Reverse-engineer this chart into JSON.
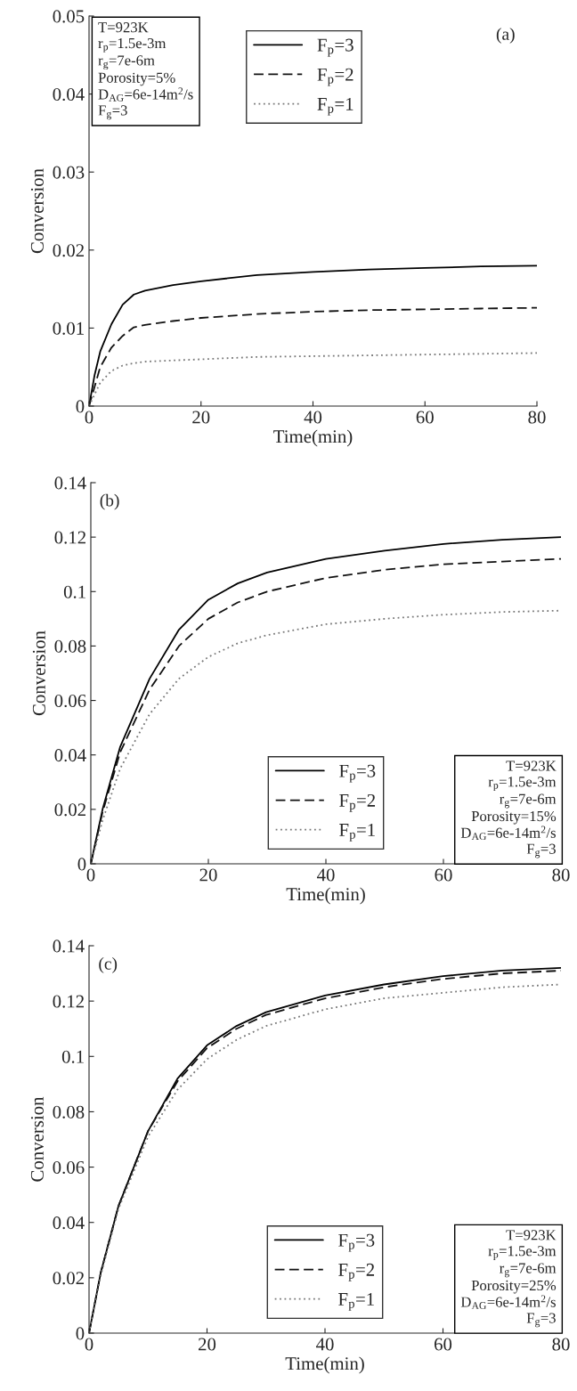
{
  "chart_data": [
    {
      "type": "line",
      "xlabel": "Time(min)",
      "ylabel": "Conversion",
      "xlim": [
        0,
        80
      ],
      "xticks": [
        0,
        20,
        40,
        60,
        80
      ],
      "ylim": [
        0,
        0.05
      ],
      "yticks": [
        0,
        0.01,
        0.02,
        0.03,
        0.04,
        0.05
      ],
      "grid": false,
      "legend": "top",
      "annotations": [
        "(a)",
        "T=923K\nr$_{p}$=1.5e-3m\nr$_{g}$=7e-6m\nPorosity=5%\nD$_{AG}$=6e-14m$^{2}$/s\nF$_{g}$=3"
      ],
      "series": [
        {
          "name": "F$_{p}$=3",
          "color": "#000000",
          "line_style": "solid",
          "x": [
            0,
            1,
            2,
            4,
            6,
            8,
            10,
            15,
            20,
            30,
            40,
            50,
            60,
            70,
            80
          ],
          "values": [
            0,
            0.004,
            0.007,
            0.0105,
            0.013,
            0.0143,
            0.0148,
            0.0155,
            0.016,
            0.0168,
            0.0172,
            0.0175,
            0.0177,
            0.0179,
            0.018
          ]
        },
        {
          "name": "F$_{p}$=2",
          "color": "#111111",
          "line_style": "dashed",
          "x": [
            0,
            2,
            4,
            6,
            8,
            10,
            15,
            20,
            30,
            40,
            50,
            60,
            70,
            80
          ],
          "values": [
            0,
            0.005,
            0.0075,
            0.009,
            0.0101,
            0.0104,
            0.0109,
            0.0113,
            0.0118,
            0.0121,
            0.0123,
            0.0124,
            0.0125,
            0.0126
          ]
        },
        {
          "name": "F$_{p}$=1",
          "color": "#777777",
          "line_style": "dotted",
          "x": [
            0,
            2,
            4,
            6,
            8,
            10,
            20,
            30,
            40,
            60,
            80
          ],
          "values": [
            0,
            0.003,
            0.0045,
            0.0052,
            0.0055,
            0.0057,
            0.006,
            0.0063,
            0.0064,
            0.0066,
            0.0068
          ]
        }
      ]
    },
    {
      "type": "line",
      "xlabel": "Time(min)",
      "ylabel": "Conversion",
      "xlim": [
        0,
        80
      ],
      "xticks": [
        0,
        20,
        40,
        60,
        80
      ],
      "ylim": [
        0,
        0.14
      ],
      "yticks": [
        0,
        0.02,
        0.04,
        0.06,
        0.08,
        0.1,
        0.12,
        0.14
      ],
      "grid": false,
      "legend": "bottom",
      "annotations": [
        "(b)",
        "T=923K\nr$_{p}$=1.5e-3m\nr$_{g}$=7e-6m\nPorosity=15%\nD$_{AG}$=6e-14m$^{2}$/s\nF$_{g}$=3"
      ],
      "series": [
        {
          "name": "F$_{p}$=3",
          "color": "#000000",
          "line_style": "solid",
          "x": [
            0,
            2,
            5,
            10,
            15,
            20,
            25,
            30,
            40,
            50,
            60,
            70,
            80
          ],
          "values": [
            0,
            0.02,
            0.043,
            0.068,
            0.086,
            0.097,
            0.103,
            0.107,
            0.112,
            0.115,
            0.1175,
            0.119,
            0.12
          ]
        },
        {
          "name": "F$_{p}$=2",
          "color": "#111111",
          "line_style": "dashed",
          "x": [
            0,
            2,
            5,
            10,
            15,
            20,
            25,
            30,
            40,
            50,
            60,
            70,
            80
          ],
          "values": [
            0,
            0.019,
            0.041,
            0.064,
            0.08,
            0.09,
            0.096,
            0.1,
            0.105,
            0.108,
            0.11,
            0.111,
            0.112
          ]
        },
        {
          "name": "F$_{p}$=1",
          "color": "#777777",
          "line_style": "dotted",
          "x": [
            0,
            2,
            5,
            10,
            15,
            20,
            25,
            30,
            40,
            50,
            60,
            70,
            80
          ],
          "values": [
            0,
            0.016,
            0.035,
            0.055,
            0.068,
            0.076,
            0.081,
            0.084,
            0.088,
            0.09,
            0.0915,
            0.0925,
            0.093
          ]
        }
      ]
    },
    {
      "type": "line",
      "xlabel": "Time(min)",
      "ylabel": "Conversion",
      "xlim": [
        0,
        80
      ],
      "xticks": [
        0,
        20,
        40,
        60,
        80
      ],
      "ylim": [
        0,
        0.14
      ],
      "yticks": [
        0,
        0.02,
        0.04,
        0.06,
        0.08,
        0.1,
        0.12,
        0.14
      ],
      "grid": false,
      "legend": "bottom",
      "annotations": [
        "(c)",
        "T=923K\nr$_{p}$=1.5e-3m\nr$_{g}$=7e-6m\nPorosity=25%\nD$_{AG}$=6e-14m$^{2}$/s\nF$_{g}$=3"
      ],
      "series": [
        {
          "name": "F$_{p}$=3",
          "color": "#000000",
          "line_style": "solid",
          "x": [
            0,
            2,
            5,
            10,
            15,
            20,
            25,
            30,
            40,
            50,
            60,
            70,
            80
          ],
          "values": [
            0,
            0.022,
            0.046,
            0.073,
            0.092,
            0.104,
            0.111,
            0.116,
            0.122,
            0.126,
            0.129,
            0.131,
            0.132
          ]
        },
        {
          "name": "F$_{p}$=2",
          "color": "#111111",
          "line_style": "dashed",
          "x": [
            0,
            2,
            5,
            10,
            15,
            20,
            25,
            30,
            40,
            50,
            60,
            70,
            80
          ],
          "values": [
            0,
            0.022,
            0.046,
            0.073,
            0.091,
            0.103,
            0.11,
            0.115,
            0.121,
            0.125,
            0.128,
            0.13,
            0.131
          ]
        },
        {
          "name": "F$_{p}$=1",
          "color": "#777777",
          "line_style": "dotted",
          "x": [
            0,
            2,
            5,
            10,
            15,
            20,
            25,
            30,
            40,
            50,
            60,
            70,
            80
          ],
          "values": [
            0,
            0.021,
            0.045,
            0.071,
            0.088,
            0.099,
            0.106,
            0.111,
            0.117,
            0.121,
            0.123,
            0.125,
            0.126
          ]
        }
      ]
    }
  ]
}
